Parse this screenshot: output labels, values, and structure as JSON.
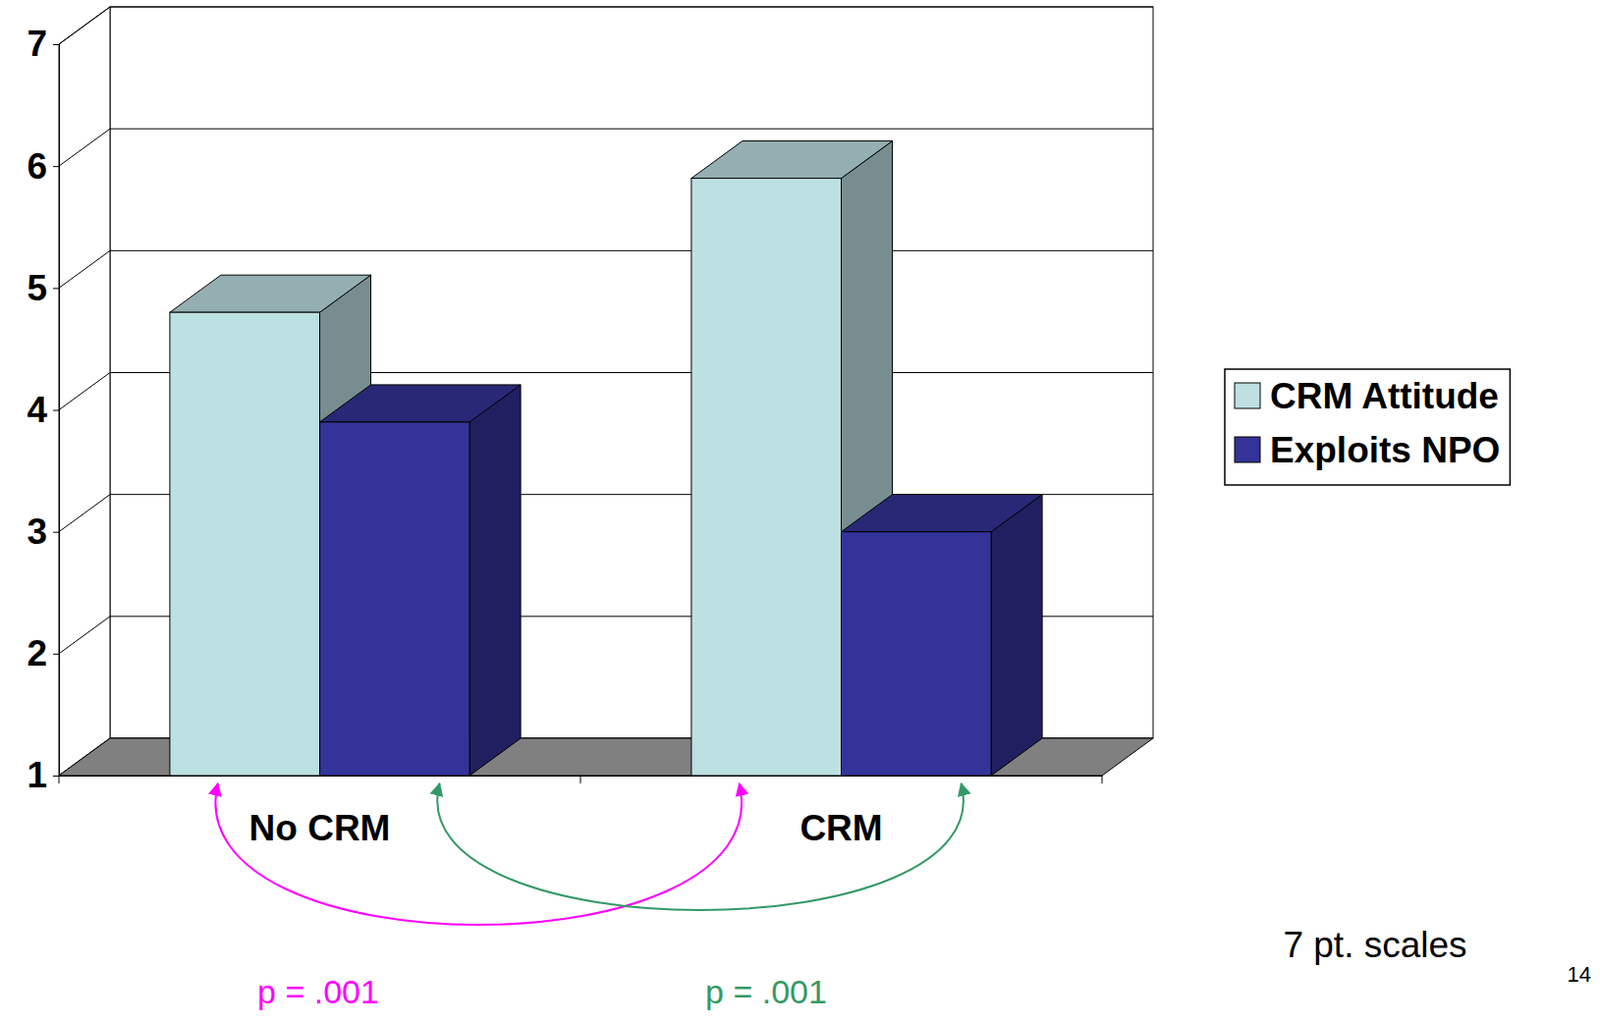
{
  "chart_data": {
    "type": "bar",
    "categories": [
      "No CRM",
      "CRM"
    ],
    "series": [
      {
        "name": "CRM Attitude",
        "color": "#bde0e3",
        "values": [
          4.8,
          5.9
        ]
      },
      {
        "name": "Exploits NPO",
        "color": "#333399",
        "values": [
          3.9,
          3.0
        ]
      }
    ],
    "ylim": [
      1,
      7
    ],
    "yticks": [
      1,
      2,
      3,
      4,
      5,
      6,
      7
    ],
    "grid": true,
    "legend": "right",
    "annotations": [
      {
        "text": "p = .001",
        "color": "#ff00ff"
      },
      {
        "text": "p = .001",
        "color": "#339966"
      },
      {
        "text": "7 pt. scales"
      },
      {
        "text": "14"
      }
    ]
  }
}
